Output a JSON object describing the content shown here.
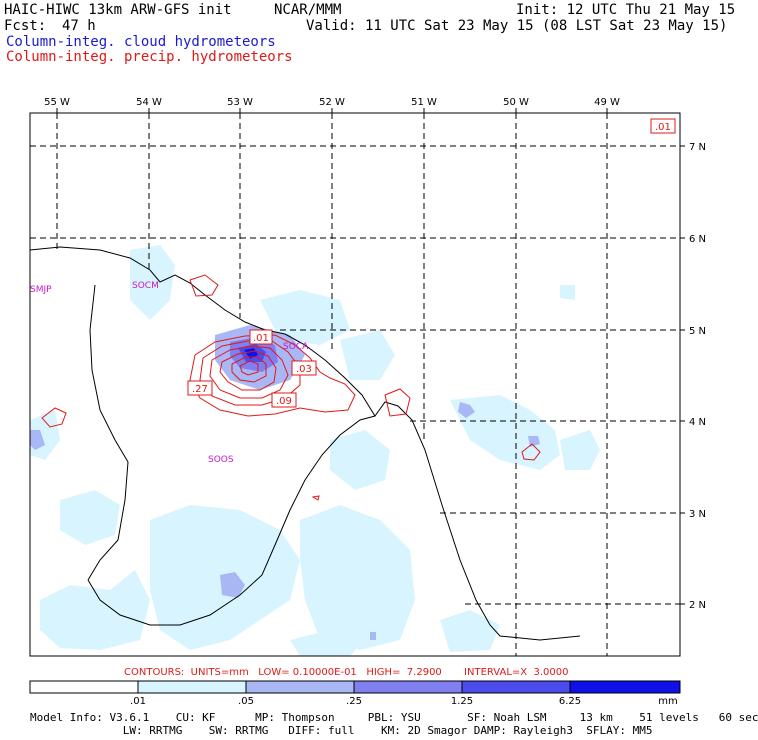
{
  "header": {
    "model": "HAIC-HIWC 13km ARW-GFS init",
    "org": "NCAR/MMM",
    "fcst_label": "Fcst:",
    "fcst_value": "47 h",
    "init": "Init: 12 UTC Thu 21 May 15",
    "valid": "Valid: 11 UTC Sat 23 May 15 (08 LST Sat 23 May 15)",
    "field_cloud": "Column-integ. cloud hydrometeors",
    "field_precip": "Column-integ. precip. hydrometeors"
  },
  "map": {
    "lon_labels": [
      "55 W",
      "54 W",
      "53 W",
      "52 W",
      "51 W",
      "50 W",
      "49 W"
    ],
    "lat_labels": [
      "7 N",
      "6 N",
      "5 N",
      "4 N",
      "3 N",
      "2 N"
    ],
    "stations": [
      "SMJP",
      "SOCM",
      "SOCA",
      "SOOS"
    ],
    "contour_labels": [
      ".01",
      ".01",
      ".03",
      ".09",
      ".27"
    ]
  },
  "footer": {
    "contours": "CONTOURS:  UNITS=mm   LOW= 0.10000E-01   HIGH=  7.2900       INTERVAL=X  3.0000",
    "colorbar_ticks": [
      ".01",
      ".05",
      ".25",
      "1.25",
      "6.25",
      "mm"
    ],
    "colorbar_colors": [
      "#ffffff",
      "#d8f4ff",
      "#a9b8f5",
      "#7f7ff0",
      "#4c4ced",
      "#1010e8"
    ],
    "model_info_1": "Model Info: V3.6.1    CU: KF      MP: Thompson     PBL: YSU       SF: Noah LSM     13 km    51 levels   60 sec",
    "model_info_2": "              LW: RRTMG    SW: RRTMG   DIFF: full    KM: 2D Smagor DAMP: Rayleigh3  SFLAY: MM5"
  }
}
